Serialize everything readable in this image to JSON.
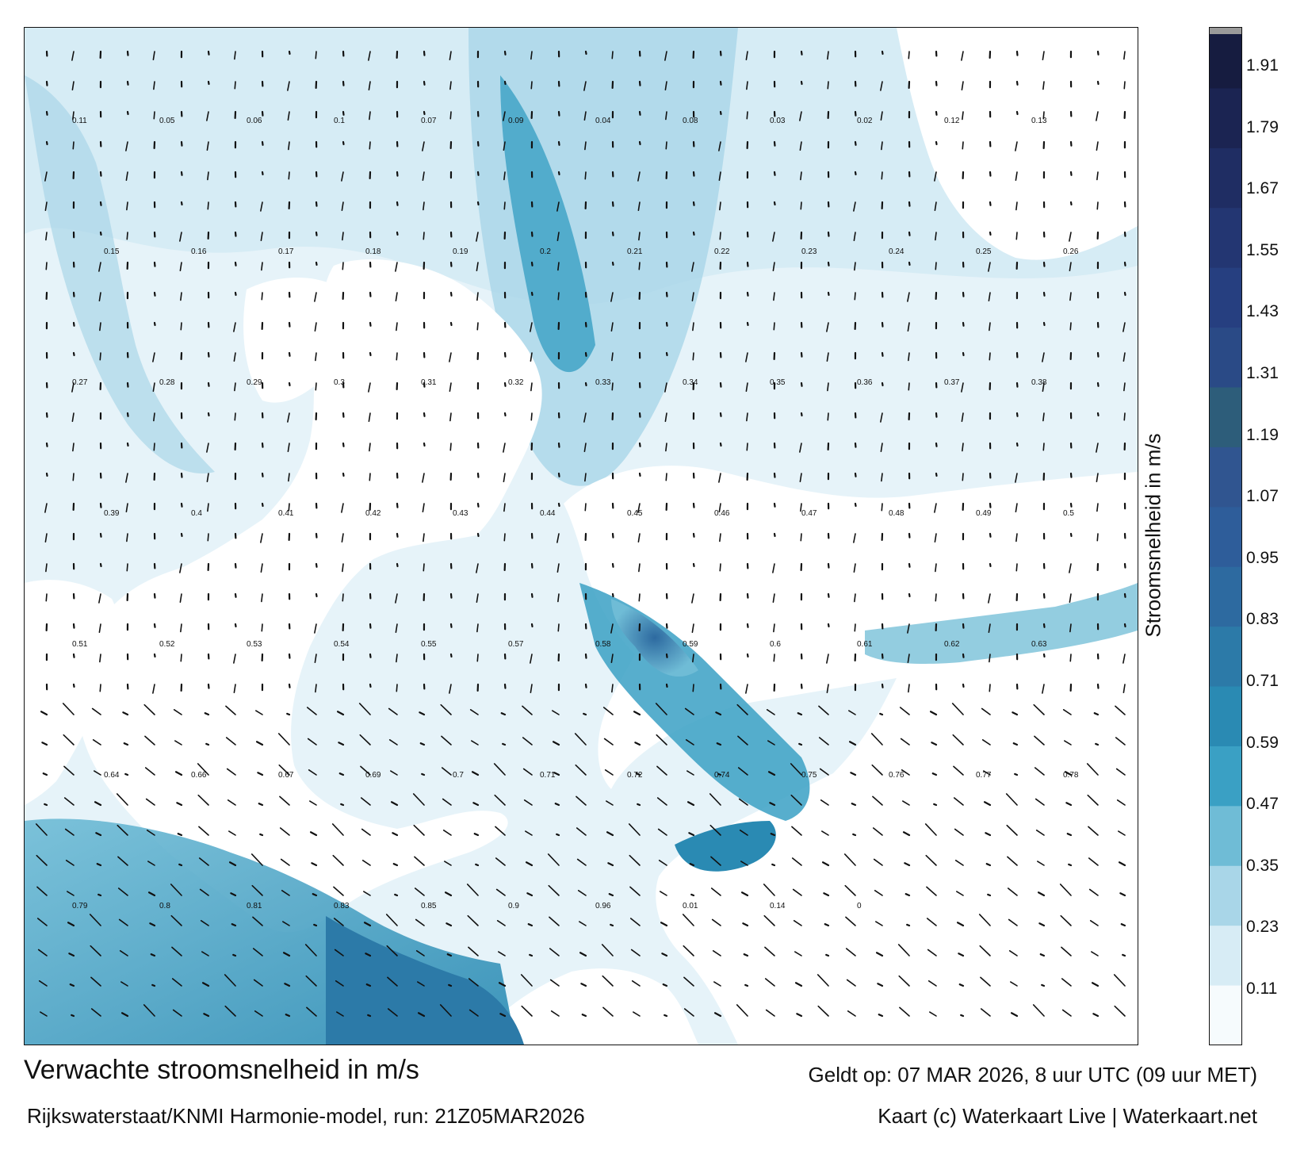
{
  "map": {
    "title": "Verwachte stroomsnelheid in m/s",
    "subtitle": "Rijkswaterstaat/KNMI Harmonie-model, run: 21Z05MAR2026",
    "valid_time": "Geldt op: 07 MAR 2026, 8 uur UTC (09 uur MET)",
    "credit": "Kaart (c) Waterkaart Live | Waterkaart.net",
    "land_color": "#ffffff",
    "arrow_color": "#111111"
  },
  "colorbar": {
    "label": "Stroomsnelheid in m/s",
    "ticks": [
      "1.91",
      "1.79",
      "1.67",
      "1.55",
      "1.43",
      "1.31",
      "1.19",
      "1.07",
      "0.95",
      "0.83",
      "0.71",
      "0.59",
      "0.47",
      "0.35",
      "0.23",
      "0.11"
    ],
    "colors": [
      "#f6fbfd",
      "#d7ecf5",
      "#a9d6e8",
      "#6fbcd6",
      "#3aa0c4",
      "#2a8ab3",
      "#2c7aa8",
      "#2d6aa0",
      "#2e5d9a",
      "#305590",
      "#2d5d7a",
      "#2a4a86",
      "#263f80",
      "#233672",
      "#1f2d63",
      "#1b2452",
      "#161c40"
    ]
  },
  "current_labels": [
    "0.11",
    "0.05",
    "0.06",
    "0.1",
    "0.07",
    "0.09",
    "0.04",
    "0.08",
    "0.03",
    "0.02",
    "0.12",
    "0.13",
    "0.15",
    "0.16",
    "0.17",
    "0.18",
    "0.19",
    "0.2",
    "0.21",
    "0.22",
    "0.23",
    "0.24",
    "0.25",
    "0.26",
    "0.27",
    "0.28",
    "0.29",
    "0.3",
    "0.31",
    "0.32",
    "0.33",
    "0.34",
    "0.35",
    "0.36",
    "0.37",
    "0.38",
    "0.39",
    "0.4",
    "0.41",
    "0.42",
    "0.43",
    "0.44",
    "0.45",
    "0.46",
    "0.47",
    "0.48",
    "0.49",
    "0.5",
    "0.51",
    "0.52",
    "0.53",
    "0.54",
    "0.55",
    "0.57",
    "0.58",
    "0.59",
    "0.6",
    "0.61",
    "0.62",
    "0.63",
    "0.64",
    "0.66",
    "0.67",
    "0.69",
    "0.7",
    "0.71",
    "0.72",
    "0.74",
    "0.75",
    "0.76",
    "0.77",
    "0.78",
    "0.79",
    "0.8",
    "0.81",
    "0.83",
    "0.85",
    "0.9",
    "0.96",
    "0.01",
    "0.14",
    "0"
  ]
}
